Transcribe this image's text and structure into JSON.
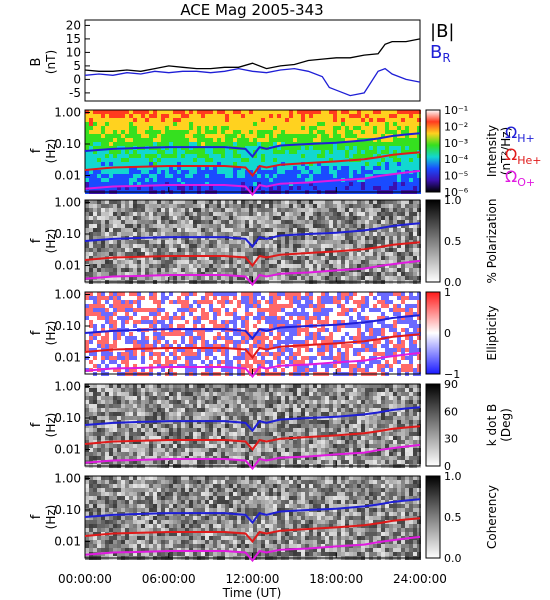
{
  "figure": {
    "title": "ACE Mag 2005-343",
    "x_axis": {
      "label": "Time (UT)",
      "ticks": [
        "00:00:00",
        "06:00:00",
        "12:00:00",
        "18:00:00",
        "24:00:00"
      ],
      "tick_hours": [
        0,
        6,
        12,
        18,
        24
      ]
    }
  },
  "chart_data": [
    {
      "type": "line",
      "panel": "field",
      "ylabel": "B",
      "yunit": "(nT)",
      "ylim": [
        -8,
        22
      ],
      "yticks": [
        20,
        15,
        10,
        5,
        0,
        -5
      ],
      "x_unit": "hours UT",
      "series": [
        {
          "name": "|B|",
          "color": "#000000",
          "x": [
            0,
            1,
            2,
            3,
            4,
            5,
            6,
            7,
            8,
            9,
            10,
            11,
            12,
            13,
            14,
            15,
            16,
            17,
            18,
            19,
            20,
            21,
            21.5,
            22,
            23,
            24
          ],
          "values": [
            3.5,
            3,
            3,
            3.5,
            3,
            4,
            5,
            4.5,
            4,
            4,
            4.5,
            4.5,
            6,
            4,
            5,
            5.5,
            7,
            7.5,
            8,
            8,
            9,
            9.5,
            13,
            14,
            14,
            15
          ]
        },
        {
          "name": "B",
          "subscript": "R",
          "color": "#1f1fd6",
          "x": [
            0,
            1,
            2,
            3,
            4,
            5,
            6,
            7,
            8,
            9,
            10,
            11,
            12,
            13,
            14,
            15,
            16,
            17,
            17.5,
            18,
            19,
            20,
            21,
            21.5,
            22,
            23,
            24
          ],
          "values": [
            1.5,
            2,
            1.5,
            2.5,
            2,
            3,
            2.5,
            3,
            3,
            2.5,
            3,
            4,
            3,
            2.5,
            3.5,
            4,
            3,
            1,
            -3,
            -4,
            -6,
            -5,
            3,
            4,
            2,
            0,
            -1
          ]
        }
      ]
    },
    {
      "type": "heatmap",
      "panel": "intensity",
      "ylabel": "f",
      "yunit": "(Hz)",
      "yticks": [
        "1.00",
        "0.10",
        "0.01"
      ],
      "colorbar": {
        "label": "Intensity",
        "unit": "(nT²/Hz)",
        "ticks": [
          "10⁻¹",
          "10⁻²",
          "10⁻³",
          "10⁻⁴",
          "10⁻⁵",
          "10⁻⁶"
        ],
        "colors": [
          "#ffffff",
          "#ff3b1f",
          "#ffd21f",
          "#35e01f",
          "#12d7d0",
          "#1a4bff",
          "#3a12b0",
          "#000000"
        ]
      },
      "series_labels": [
        {
          "symbol": "Ω",
          "subscript": "H+",
          "color": "#1f1fd6"
        },
        {
          "symbol": "Ω",
          "subscript": "He+",
          "color": "#e01a1a"
        },
        {
          "symbol": "Ω",
          "subscript": "O+",
          "color": "#e01ae0"
        }
      ]
    },
    {
      "type": "heatmap",
      "panel": "polarization",
      "ylabel": "f",
      "yunit": "(Hz)",
      "yticks": [
        "1.00",
        "0.10",
        "0.01"
      ],
      "colorbar": {
        "label": "% Polarization",
        "ticks": [
          "1.0",
          "0.5",
          "0.0"
        ],
        "colors": [
          "#000000",
          "#ffffff"
        ]
      }
    },
    {
      "type": "heatmap",
      "panel": "ellipticity",
      "ylabel": "f",
      "yunit": "(Hz)",
      "yticks": [
        "1.00",
        "0.10",
        "0.01"
      ],
      "colorbar": {
        "label": "Ellipticity",
        "ticks": [
          "1",
          "0",
          "−1"
        ],
        "colors": [
          "#ff1a1a",
          "#ffffff",
          "#1a1aff"
        ]
      }
    },
    {
      "type": "heatmap",
      "panel": "k_dot_b",
      "ylabel": "f",
      "yunit": "(Hz)",
      "yticks": [
        "1.00",
        "0.10",
        "0.01"
      ],
      "colorbar": {
        "label": "k dot B",
        "unit": "(Deg)",
        "ticks": [
          "90",
          "60",
          "30",
          "0"
        ],
        "colors": [
          "#000000",
          "#ffffff"
        ]
      }
    },
    {
      "type": "heatmap",
      "panel": "coherency",
      "ylabel": "f",
      "yunit": "(Hz)",
      "yticks": [
        "1.0",
        "0.5",
        "0.0"
      ],
      "yticks_main": [
        "1.00",
        "0.10",
        "0.01"
      ],
      "colorbar": {
        "label": "Coherency",
        "ticks": [
          "1.0",
          "0.5",
          "0.0"
        ],
        "colors": [
          "#000000",
          "#ffffff"
        ]
      }
    }
  ],
  "gyrofrequency_lines": {
    "x": [
      0,
      2,
      4,
      6,
      8,
      10,
      11.5,
      12,
      12.5,
      13,
      14,
      16,
      18,
      20,
      21,
      22,
      23,
      24
    ],
    "H_plus_hz": [
      0.06,
      0.07,
      0.075,
      0.08,
      0.08,
      0.08,
      0.07,
      0.04,
      0.08,
      0.07,
      0.09,
      0.1,
      0.11,
      0.13,
      0.15,
      0.18,
      0.2,
      0.22
    ],
    "He_plus_hz": [
      0.015,
      0.018,
      0.019,
      0.02,
      0.02,
      0.02,
      0.018,
      0.01,
      0.02,
      0.018,
      0.022,
      0.025,
      0.028,
      0.033,
      0.038,
      0.045,
      0.05,
      0.055
    ],
    "O_plus_hz": [
      0.0038,
      0.0045,
      0.0047,
      0.005,
      0.005,
      0.005,
      0.0045,
      0.0025,
      0.005,
      0.0045,
      0.0055,
      0.006,
      0.007,
      0.008,
      0.0095,
      0.011,
      0.0125,
      0.014
    ]
  }
}
